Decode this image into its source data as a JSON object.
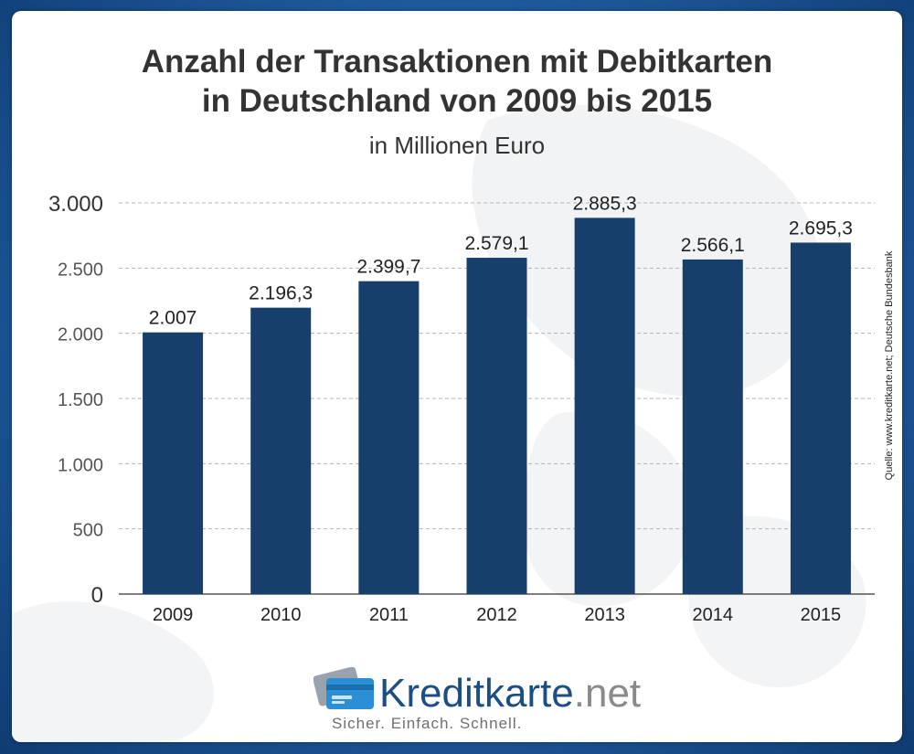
{
  "chart_data": {
    "type": "bar",
    "title_lines": [
      "Anzahl der Transaktionen mit Debitkarten",
      "in Deutschland von 2009 bis 2015"
    ],
    "subtitle": "in Millionen Euro",
    "categories": [
      "2009",
      "2010",
      "2011",
      "2012",
      "2013",
      "2014",
      "2015"
    ],
    "values": [
      2007,
      2196.3,
      2399.7,
      2579.1,
      2885.3,
      2566.1,
      2695.3
    ],
    "value_labels": [
      "2.007",
      "2.196,3",
      "2.399,7",
      "2.579,1",
      "2.885,3",
      "2.566,1",
      "2.695,3"
    ],
    "yticks": [
      0,
      500,
      1000,
      1500,
      2000,
      2500,
      3000
    ],
    "ytick_labels": [
      "0",
      "500",
      "1.000",
      "1.500",
      "2.000",
      "2.500",
      "3.000"
    ],
    "ylim": [
      0,
      3000
    ],
    "grid": true,
    "bar_color": "#173f6b",
    "source": "Quelle: www.kreditkarte.net; Deutsche Bundesbank"
  },
  "branding": {
    "logo_main": "Kreditkarte",
    "logo_tld": ".net",
    "slogan": "Sicher. Einfach. Schnell.",
    "icon": "credit-card-icon"
  }
}
